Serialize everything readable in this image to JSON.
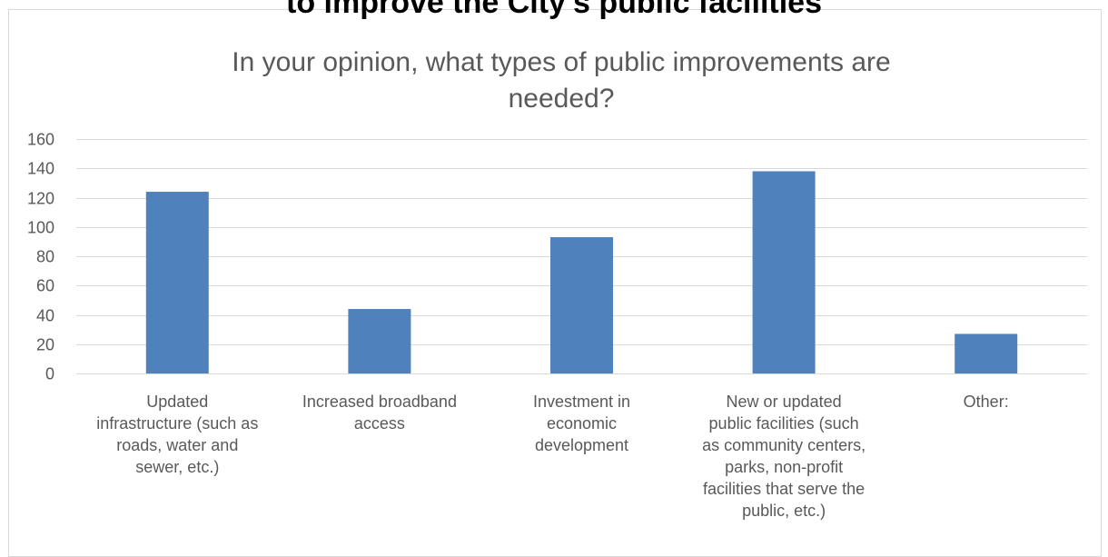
{
  "heading_fragment": "to improve the City's public facilities",
  "chart_data": {
    "type": "bar",
    "title_lines": [
      "In your opinion, what types of public improvements are",
      "needed?"
    ],
    "categories": [
      "Updated infrastructure (such as roads, water and sewer, etc.)",
      "Increased broadband access",
      "Investment in economic development",
      "New or updated public facilities (such as community centers, parks, non-profit facilities that serve the public, etc.)",
      "Other:"
    ],
    "category_label_lines": [
      [
        "Updated",
        "infrastructure (such as",
        "roads, water and",
        "sewer, etc.)"
      ],
      [
        "Increased broadband",
        "access"
      ],
      [
        "Investment in",
        "economic",
        "development"
      ],
      [
        "New or updated",
        "public facilities (such",
        "as community centers,",
        "parks, non-profit",
        "facilities that serve the",
        "public, etc.)"
      ],
      [
        "Other:"
      ]
    ],
    "values": [
      124,
      44,
      93,
      138,
      27
    ],
    "ylim": [
      0,
      160
    ],
    "yticks": [
      0,
      20,
      40,
      60,
      80,
      100,
      120,
      140,
      160
    ],
    "ytick_labels": [
      "0",
      "20",
      "40",
      "60",
      "80",
      "100",
      "120",
      "140",
      "160"
    ],
    "bar_color": "#4f81bd",
    "grid": true,
    "legend": "none",
    "xlabel": "",
    "ylabel": ""
  }
}
